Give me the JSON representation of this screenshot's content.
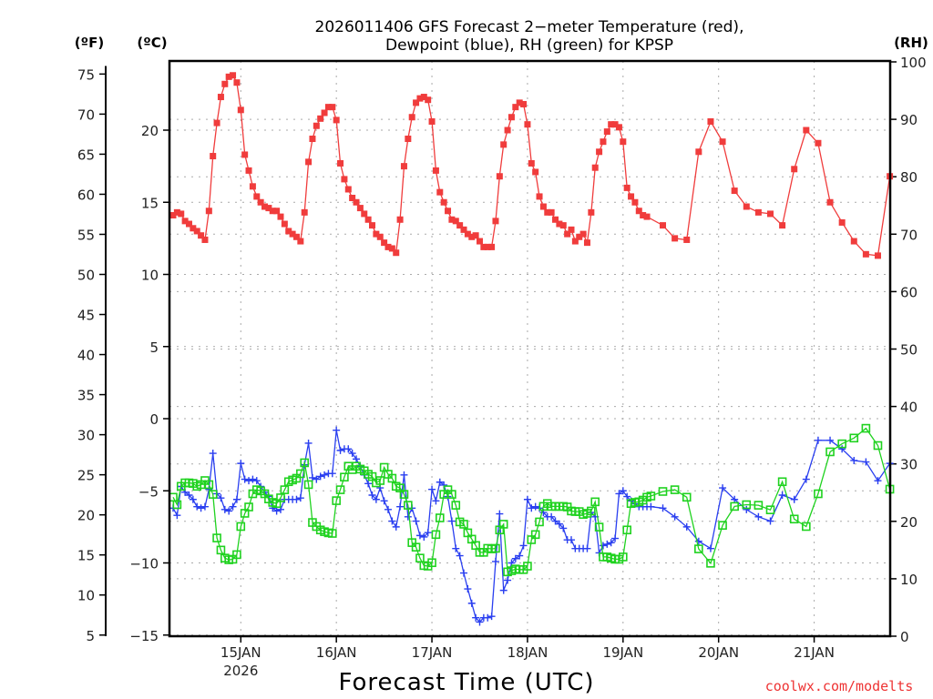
{
  "chart_data": {
    "type": "line",
    "title_line1": "2026011406 GFS Forecast 2−meter Temperature (red),",
    "title_line2": "Dewpoint (blue), RH (green) for KPSP",
    "xlabel": "Forecast Time (UTC)",
    "credit": "coolwx.com/modelts",
    "units": {
      "left_f": "(ºF)",
      "left_c": "(ºC)",
      "right_rh": "(RH)"
    },
    "x_ticks": [
      {
        "hour": 0,
        "label": "15JAN",
        "sublabel": "2026"
      },
      {
        "hour": 24,
        "label": "16JAN"
      },
      {
        "hour": 48,
        "label": "17JAN"
      },
      {
        "hour": 72,
        "label": "18JAN"
      },
      {
        "hour": 96,
        "label": "19JAN"
      },
      {
        "hour": 120,
        "label": "20JAN"
      },
      {
        "hour": 144,
        "label": "21JAN"
      }
    ],
    "x_units": "hours since 15JAN 00Z",
    "xlim": [
      -17,
      163
    ],
    "celsius_axis": {
      "ylim": [
        -15,
        25
      ],
      "ticks": [
        -15,
        -10,
        -5,
        0,
        5,
        10,
        15,
        20
      ]
    },
    "fahrenheit_axis": {
      "ticks": [
        5,
        10,
        15,
        20,
        25,
        30,
        35,
        40,
        45,
        50,
        55,
        60,
        65,
        70,
        75
      ]
    },
    "rh_axis": {
      "ylim": [
        0,
        100
      ],
      "ticks": [
        0,
        10,
        20,
        30,
        40,
        50,
        60,
        70,
        80,
        90,
        100
      ]
    },
    "grid": true,
    "series": [
      {
        "name": "2-meter Temperature",
        "units": "C",
        "color": "#f03c3c",
        "marker": "filled-square",
        "axis": "celsius",
        "hourly_start": -17,
        "hourly": [
          14.1,
          14.3,
          14.2,
          13.7,
          13.5,
          13.2,
          13.0,
          12.7,
          12.4,
          14.4,
          18.2,
          20.5,
          22.3,
          23.2,
          23.7,
          23.8,
          23.3,
          21.4,
          18.3,
          17.2,
          16.1,
          15.4,
          15.0,
          14.7,
          14.6,
          14.4,
          14.4,
          14.0,
          13.5,
          13.0,
          12.8,
          12.6,
          12.3,
          14.3,
          17.8,
          19.4,
          20.3,
          20.8,
          21.2,
          21.6,
          21.6,
          20.7,
          17.7,
          16.6,
          15.9,
          15.3,
          15.0,
          14.6,
          14.2,
          13.8,
          13.4,
          12.8,
          12.6,
          12.2,
          11.9,
          11.8,
          11.5,
          13.8,
          17.5,
          19.4,
          20.9,
          21.9,
          22.2,
          22.3,
          22.1,
          20.6,
          17.2,
          15.7,
          15.0,
          14.4,
          13.8,
          13.7,
          13.4,
          13.1,
          12.8,
          12.6,
          12.7,
          12.3,
          11.9,
          11.9,
          11.9,
          13.7,
          16.8,
          19.0,
          20.0,
          20.9,
          21.6,
          21.9,
          21.8,
          20.4,
          17.7,
          17.1,
          15.4,
          14.7,
          14.3,
          14.3,
          13.8,
          13.5,
          13.4,
          12.8,
          13.1,
          12.3,
          12.6,
          12.8,
          12.2,
          14.3,
          17.4,
          18.5,
          19.2,
          19.9,
          20.4,
          20.4,
          20.2,
          19.2,
          16.0,
          15.4,
          15.0,
          14.4,
          14.1,
          14.0
        ],
        "tail": [
          [
            106,
            13.4
          ],
          [
            109,
            12.5
          ],
          [
            112,
            12.4
          ],
          [
            115,
            18.5
          ],
          [
            118,
            20.6
          ],
          [
            121,
            19.2
          ],
          [
            124,
            15.8
          ],
          [
            127,
            14.7
          ],
          [
            130,
            14.3
          ],
          [
            133,
            14.2
          ],
          [
            136,
            13.4
          ],
          [
            139,
            17.3
          ],
          [
            142,
            20.0
          ],
          [
            145,
            19.1
          ],
          [
            148,
            15.0
          ],
          [
            151,
            13.6
          ],
          [
            154,
            12.3
          ],
          [
            157,
            11.4
          ],
          [
            160,
            11.3
          ],
          [
            163,
            16.8
          ]
        ]
      },
      {
        "name": "Dewpoint",
        "units": "C",
        "color": "#2a3ff0",
        "marker": "plus",
        "axis": "celsius",
        "hourly_start": -17,
        "hourly": [
          -6.2,
          -6.7,
          -4.7,
          -5.1,
          -5.3,
          -5.6,
          -6.1,
          -6.2,
          -6.1,
          -4.9,
          -2.4,
          -5.2,
          -5.5,
          -6.3,
          -6.4,
          -6.1,
          -5.6,
          -3.1,
          -4.2,
          -4.3,
          -4.2,
          -4.3,
          -4.7,
          -5.1,
          -5.4,
          -6.2,
          -6.4,
          -6.3,
          -5.6,
          -5.6,
          -5.6,
          -5.6,
          -5.5,
          -3.2,
          -1.7,
          -4.1,
          -4.2,
          -4.0,
          -3.9,
          -3.8,
          -3.8,
          -0.8,
          -2.2,
          -2.1,
          -2.1,
          -2.4,
          -2.8,
          -3.3,
          -3.9,
          -4.5,
          -5.3,
          -5.6,
          -4.8,
          -5.7,
          -6.3,
          -7.1,
          -7.5,
          -6.1,
          -3.9,
          -6.8,
          -6.2,
          -7.1,
          -8.1,
          -8.2,
          -7.9,
          -4.9,
          -5.7,
          -4.4,
          -4.6,
          -5.4,
          -7.1,
          -9.0,
          -9.5,
          -10.7,
          -11.8,
          -12.8,
          -13.8,
          -14.1,
          -13.8,
          -13.8,
          -13.7,
          -9.9,
          -6.6,
          -11.9,
          -11.2,
          -10.0,
          -9.7,
          -9.5,
          -8.8,
          -5.6,
          -6.2,
          -6.1,
          -6.2,
          -6.5,
          -6.8,
          -6.8,
          -7.1,
          -7.3,
          -7.6,
          -8.4,
          -8.4,
          -9.0,
          -9.0,
          -9.0,
          -9.0,
          -6.5,
          -6.8,
          -9.3,
          -8.8,
          -8.7,
          -8.6,
          -8.3,
          -5.2,
          -5.0,
          -5.4,
          -5.7,
          -5.9,
          -6.1,
          -6.1,
          -6.1,
          -6.1
        ],
        "tail": [
          [
            106,
            -6.2
          ],
          [
            109,
            -6.8
          ],
          [
            112,
            -7.5
          ],
          [
            115,
            -8.5
          ],
          [
            118,
            -9.0
          ],
          [
            121,
            -4.8
          ],
          [
            124,
            -5.6
          ],
          [
            127,
            -6.3
          ],
          [
            130,
            -6.8
          ],
          [
            133,
            -7.1
          ],
          [
            136,
            -5.3
          ],
          [
            139,
            -5.6
          ],
          [
            142,
            -4.2
          ],
          [
            145,
            -1.5
          ],
          [
            148,
            -1.5
          ],
          [
            151,
            -2.1
          ],
          [
            154,
            -2.9
          ],
          [
            157,
            -3.0
          ],
          [
            160,
            -4.3
          ],
          [
            163,
            -3.1
          ]
        ]
      },
      {
        "name": "RH",
        "units": "%",
        "color": "#1fd21f",
        "marker": "open-square",
        "axis": "rh",
        "hourly_start": -17,
        "hourly": [
          24.2,
          22.9,
          26.1,
          26.7,
          26.7,
          26.6,
          26.1,
          26.4,
          27.1,
          26.4,
          24.7,
          17.1,
          15.0,
          13.6,
          13.3,
          13.4,
          14.2,
          19.1,
          21.4,
          22.5,
          24.8,
          25.5,
          25.3,
          24.8,
          23.9,
          23.3,
          23.1,
          24.1,
          25.5,
          26.9,
          27.2,
          27.5,
          28.3,
          30.2,
          26.4,
          19.8,
          19.1,
          18.5,
          18.2,
          18.0,
          17.9,
          23.6,
          25.5,
          27.7,
          29.6,
          29.0,
          29.6,
          29.1,
          28.8,
          28.2,
          27.8,
          26.7,
          27.1,
          29.4,
          28.2,
          27.5,
          26.1,
          25.8,
          24.7,
          22.8,
          16.3,
          15.5,
          13.6,
          12.3,
          12.2,
          12.8,
          17.7,
          20.6,
          24.7,
          25.5,
          24.7,
          22.8,
          19.9,
          19.5,
          18.0,
          16.9,
          15.8,
          14.6,
          14.6,
          15.3,
          15.2,
          15.3,
          18.5,
          19.5,
          11.2,
          11.4,
          11.7,
          11.6,
          11.6,
          12.2,
          16.8,
          17.7,
          19.9,
          22.6,
          23.1,
          22.6,
          22.6,
          22.6,
          22.6,
          22.5,
          21.8,
          21.7,
          21.7,
          21.2,
          21.4,
          21.8,
          23.4,
          19.0,
          13.8,
          13.8,
          13.6,
          13.4,
          13.4,
          13.8,
          18.5,
          23.1,
          23.3,
          23.4,
          23.7,
          24.2,
          24.4
        ],
        "tail": [
          [
            106,
            25.2
          ],
          [
            109,
            25.5
          ],
          [
            112,
            24.2
          ],
          [
            115,
            15.2
          ],
          [
            118,
            12.7
          ],
          [
            121,
            19.3
          ],
          [
            124,
            22.6
          ],
          [
            127,
            22.9
          ],
          [
            130,
            22.8
          ],
          [
            133,
            22.0
          ],
          [
            136,
            26.9
          ],
          [
            139,
            20.4
          ],
          [
            142,
            19.1
          ],
          [
            145,
            24.8
          ],
          [
            148,
            32.1
          ],
          [
            151,
            33.5
          ],
          [
            154,
            34.5
          ],
          [
            157,
            36.2
          ],
          [
            160,
            33.2
          ],
          [
            163,
            25.6
          ]
        ]
      }
    ]
  }
}
